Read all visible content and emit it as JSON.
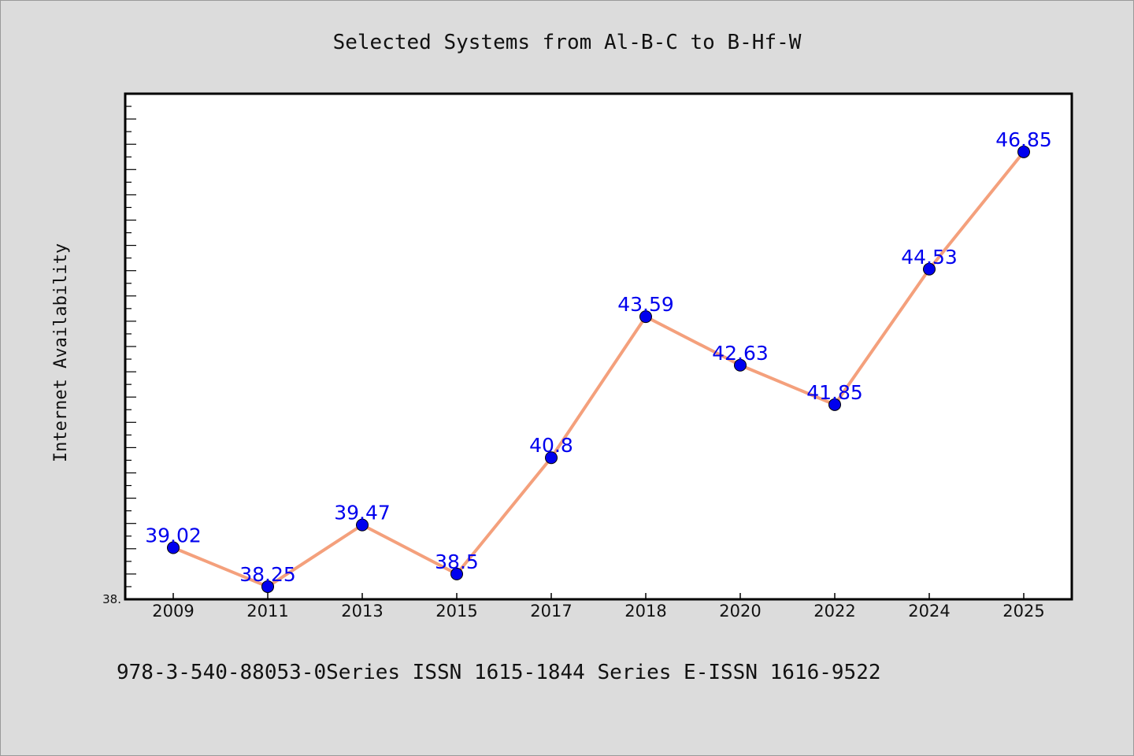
{
  "chart_data": {
    "type": "line",
    "title": "Selected Systems from Al-B-C to B-Hf-W",
    "ylabel": "Internet Availability",
    "xlabel": "",
    "categories": [
      "2009",
      "2011",
      "2013",
      "2015",
      "2017",
      "2018",
      "2020",
      "2022",
      "2024",
      "2025"
    ],
    "series": [
      {
        "values": [
          39.02,
          38.25,
          39.47,
          38.5,
          40.8,
          43.59,
          42.63,
          41.85,
          44.53,
          46.85
        ],
        "labels": [
          "39.02",
          "38.25",
          "39.47",
          "38.5",
          "40.8",
          "43.59",
          "42.63",
          "41.85",
          "44.53",
          "46.85"
        ]
      }
    ],
    "ylim": [
      38.0,
      48.0
    ],
    "ytick_label": "38.",
    "grid": false,
    "legend": "none",
    "colors": {
      "line": "#f4a07c",
      "marker": "#0000ee",
      "label": "#0000ee"
    }
  },
  "footer": {
    "text": "978-3-540-88053-0Series ISSN 1615-1844 Series E-ISSN 1616-9522"
  }
}
